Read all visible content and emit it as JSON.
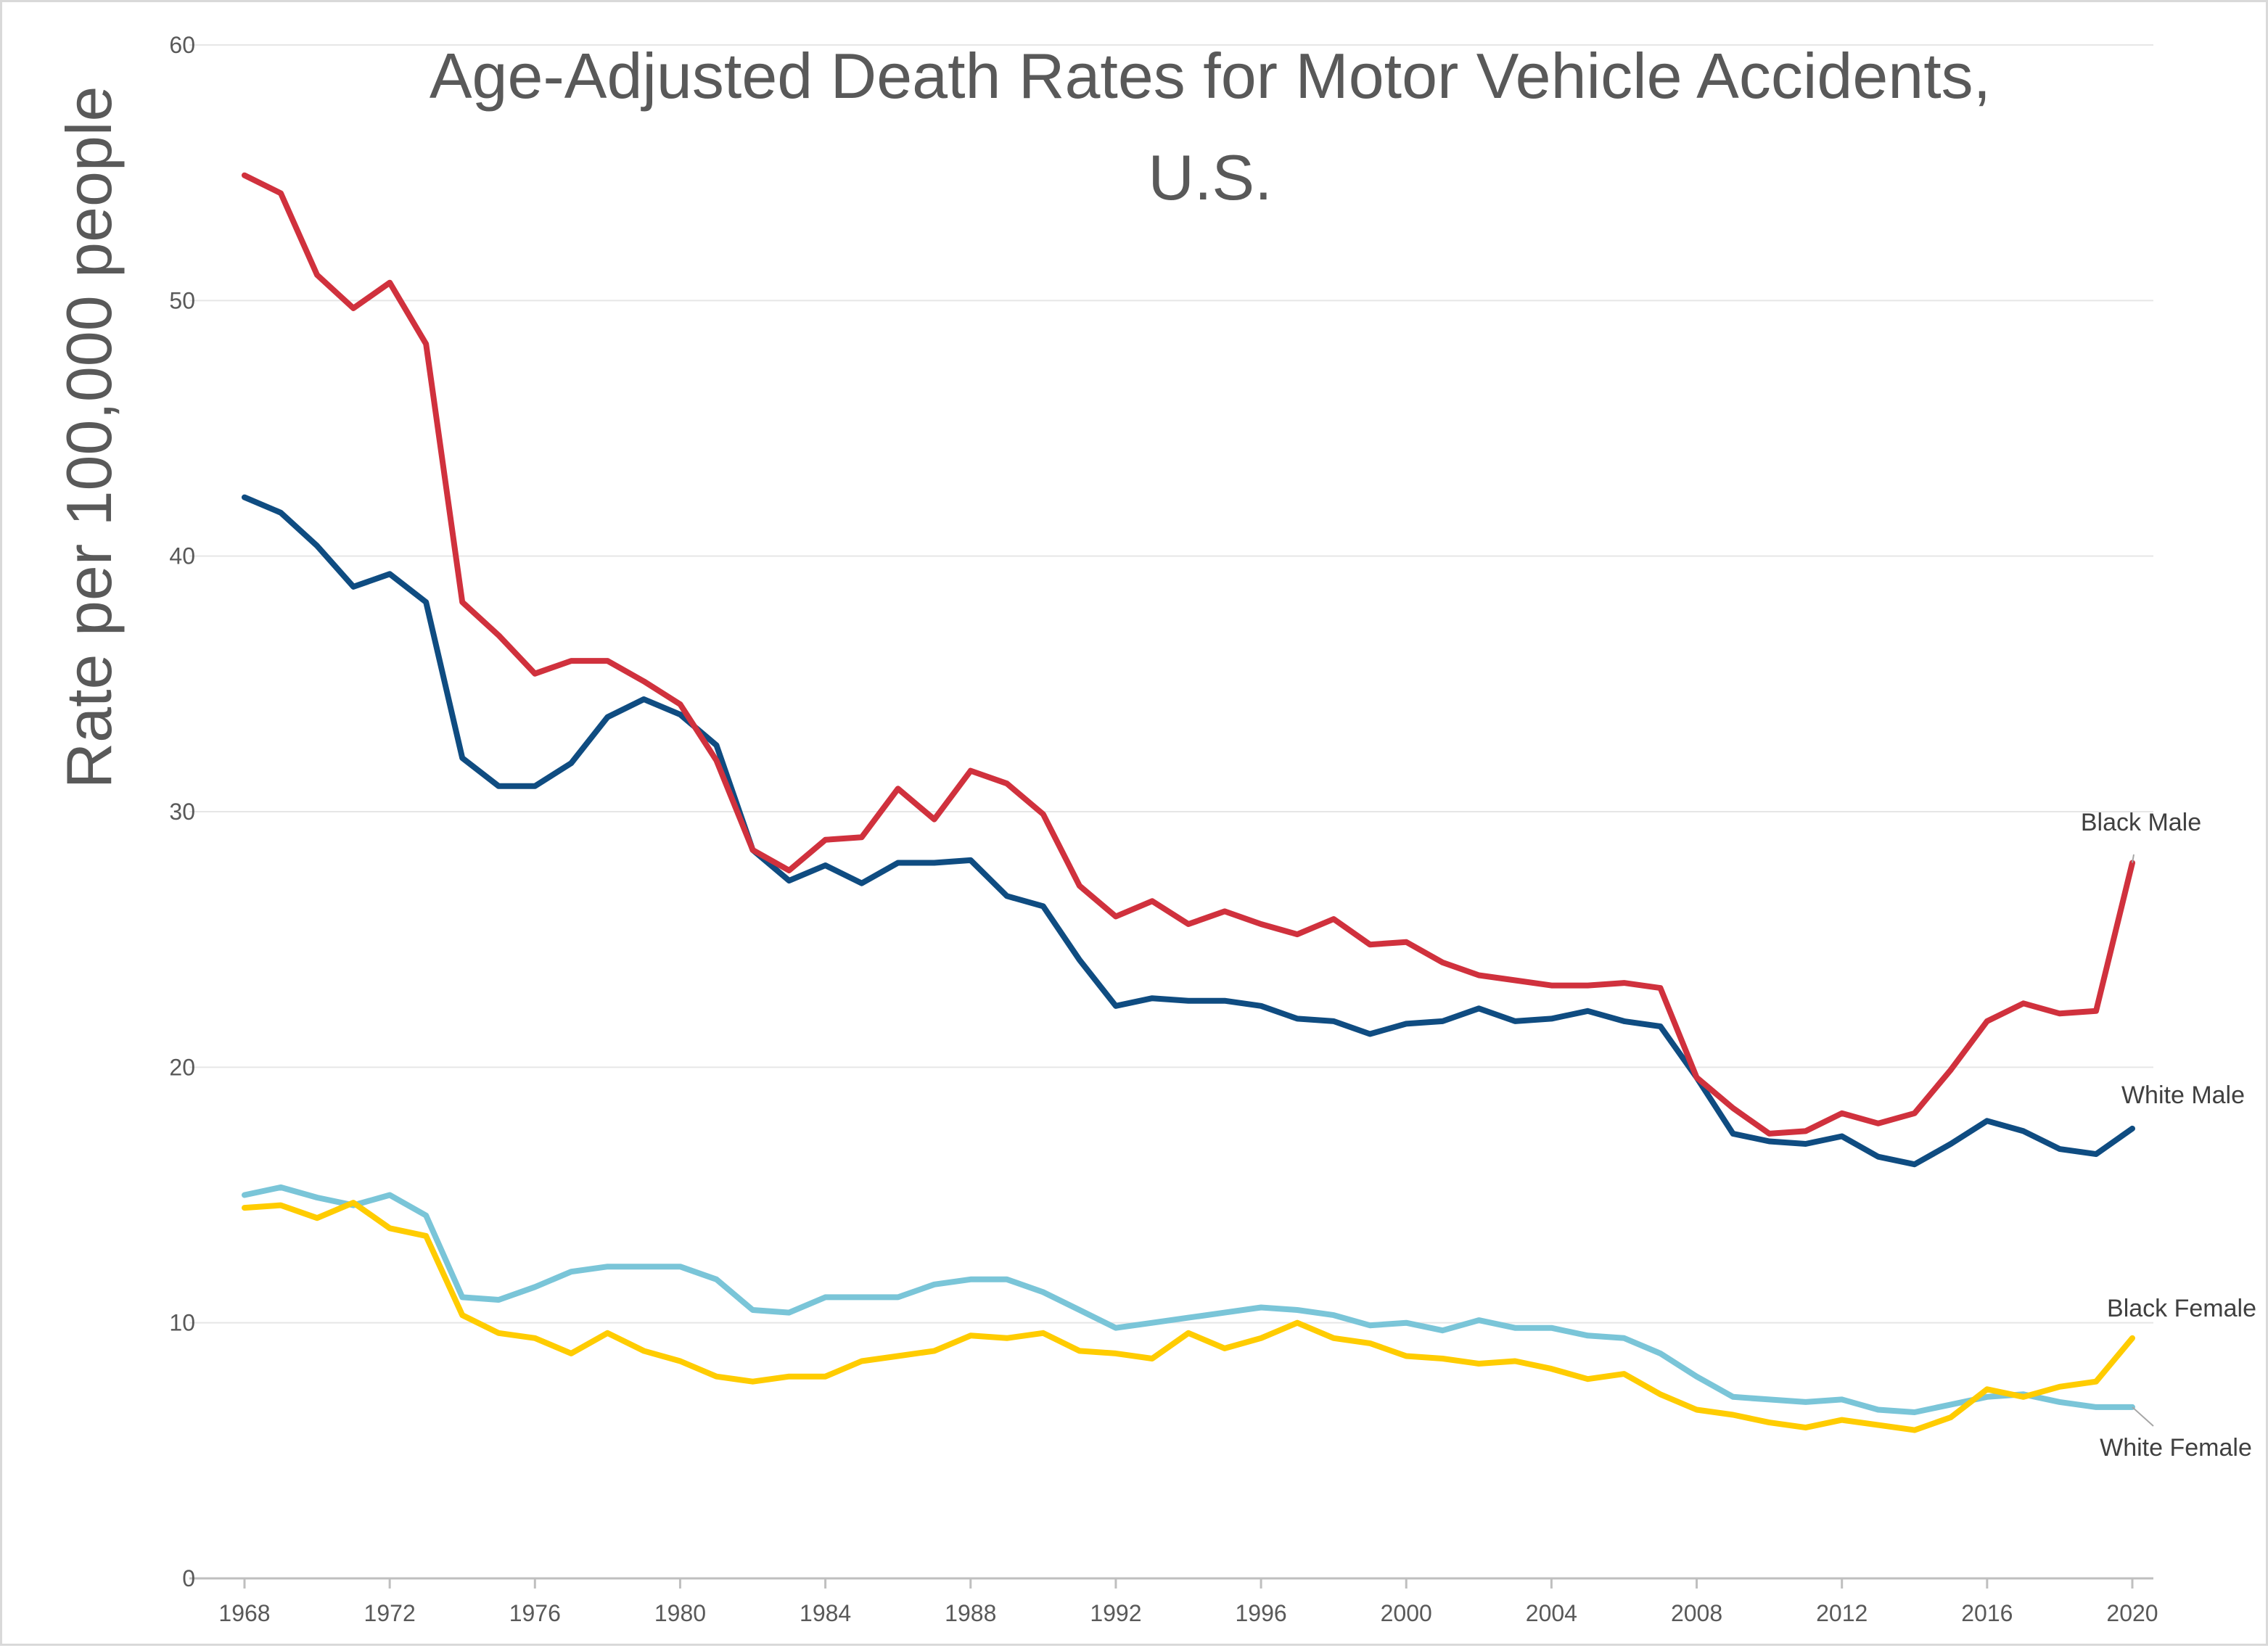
{
  "chart_data": {
    "type": "line",
    "title_lines": [
      "Age-Adjusted Death Rates for Motor Vehicle Accidents,",
      "U.S."
    ],
    "xlabel": "",
    "ylabel": "Rate per 100,000 people",
    "ylim": [
      0,
      60
    ],
    "yticks": [
      0,
      10,
      20,
      30,
      40,
      50,
      60
    ],
    "xlim": [
      1968,
      2020
    ],
    "xticks": [
      1968,
      1972,
      1976,
      1980,
      1984,
      1988,
      1992,
      1996,
      2000,
      2004,
      2008,
      2012,
      2016,
      2020
    ],
    "grid": "horizontal",
    "legend": "direct labels at line ends (right)",
    "x": [
      1968,
      1969,
      1970,
      1971,
      1972,
      1973,
      1974,
      1975,
      1976,
      1977,
      1978,
      1979,
      1980,
      1981,
      1982,
      1983,
      1984,
      1985,
      1986,
      1987,
      1988,
      1989,
      1990,
      1991,
      1992,
      1993,
      1994,
      1995,
      1996,
      1997,
      1998,
      1999,
      2000,
      2001,
      2002,
      2003,
      2004,
      2005,
      2006,
      2007,
      2008,
      2009,
      2010,
      2011,
      2012,
      2013,
      2014,
      2015,
      2016,
      2017,
      2018,
      2019,
      2020
    ],
    "series": [
      {
        "name": "Black Male",
        "color": "#d0313d",
        "values": [
          54.9,
          54.2,
          51.0,
          49.7,
          50.7,
          48.3,
          38.2,
          36.9,
          35.4,
          35.9,
          35.9,
          35.1,
          34.2,
          32.0,
          28.5,
          27.7,
          28.9,
          29.0,
          30.9,
          29.7,
          31.6,
          31.1,
          29.9,
          27.1,
          25.9,
          26.5,
          25.6,
          26.1,
          25.6,
          25.2,
          25.8,
          24.8,
          24.9,
          24.1,
          23.6,
          23.4,
          23.2,
          23.2,
          23.3,
          23.1,
          19.6,
          18.4,
          17.4,
          17.5,
          18.2,
          17.8,
          18.2,
          19.9,
          21.8,
          22.5,
          22.1,
          22.2,
          28.0
        ]
      },
      {
        "name": "White Male",
        "color": "#0f4c81",
        "values": [
          42.3,
          41.7,
          40.4,
          38.8,
          39.3,
          38.2,
          32.1,
          31.0,
          31.0,
          31.9,
          33.7,
          34.4,
          33.8,
          32.6,
          28.5,
          27.3,
          27.9,
          27.2,
          28.0,
          28.0,
          28.1,
          26.7,
          26.3,
          24.2,
          22.4,
          22.7,
          22.6,
          22.6,
          22.4,
          21.9,
          21.8,
          21.3,
          21.7,
          21.8,
          22.3,
          21.8,
          21.9,
          22.2,
          21.8,
          21.6,
          19.6,
          17.4,
          17.1,
          17.0,
          17.3,
          16.5,
          16.2,
          17.0,
          17.9,
          17.5,
          16.8,
          16.6,
          17.6
        ]
      },
      {
        "name": "Black Female",
        "color": "#ffcc00",
        "values": [
          14.5,
          14.6,
          14.1,
          14.7,
          13.7,
          13.4,
          10.3,
          9.6,
          9.4,
          8.8,
          9.6,
          8.9,
          8.5,
          7.9,
          7.7,
          7.9,
          7.9,
          8.5,
          8.7,
          8.9,
          9.5,
          9.4,
          9.6,
          8.9,
          8.8,
          8.6,
          9.6,
          9.0,
          9.4,
          10.0,
          9.4,
          9.2,
          8.7,
          8.6,
          8.4,
          8.5,
          8.2,
          7.8,
          8.0,
          7.2,
          6.6,
          6.4,
          6.1,
          5.9,
          6.2,
          6.0,
          5.8,
          6.3,
          7.4,
          7.1,
          7.5,
          7.7,
          9.4
        ]
      },
      {
        "name": "White Female",
        "color": "#7ac5d8",
        "values": [
          15.0,
          15.3,
          14.9,
          14.6,
          15.0,
          14.2,
          11.0,
          10.9,
          11.4,
          12.0,
          12.2,
          12.2,
          12.2,
          11.7,
          10.5,
          10.4,
          11.0,
          11.0,
          11.0,
          11.5,
          11.7,
          11.7,
          11.2,
          10.5,
          9.8,
          10.0,
          10.2,
          10.4,
          10.6,
          10.5,
          10.3,
          9.9,
          10.0,
          9.7,
          10.1,
          9.8,
          9.8,
          9.5,
          9.4,
          8.8,
          7.9,
          7.1,
          7.0,
          6.9,
          7.0,
          6.6,
          6.5,
          6.8,
          7.1,
          7.2,
          6.9,
          6.7,
          6.7
        ]
      }
    ]
  }
}
